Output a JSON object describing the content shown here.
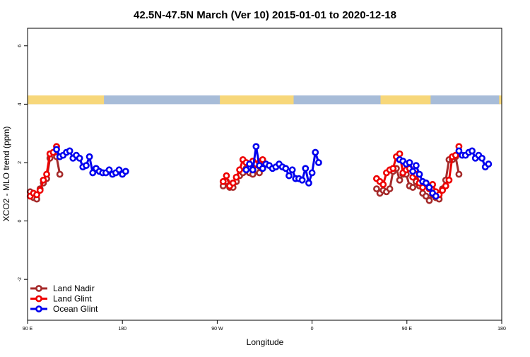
{
  "chart_data": {
    "type": "line",
    "title": "42.5N-47.5N March (Ver 10)   2015-01-01 to 2020-12-18",
    "xlabel": "Longitude",
    "ylabel": "XCO2 - MLO trend (ppm)",
    "xlim": [
      90,
      450
    ],
    "ylim": [
      -3.4,
      6.6
    ],
    "x_ticks": [
      {
        "value": 90,
        "label": "90 E"
      },
      {
        "value": 180,
        "label": "180"
      },
      {
        "value": 270,
        "label": "90 W"
      },
      {
        "value": 360,
        "label": "0"
      },
      {
        "value": 450,
        "label": "90 E"
      },
      {
        "value": 540,
        "label": "180"
      }
    ],
    "y_ticks": [
      {
        "value": -2,
        "label": "-2"
      },
      {
        "value": 0,
        "label": "0"
      },
      {
        "value": 2,
        "label": "2"
      },
      {
        "value": 4,
        "label": "4"
      },
      {
        "value": 6,
        "label": "6"
      }
    ],
    "display_xlim": [
      90,
      540
    ],
    "grid": false,
    "legend_position": "bottom-left",
    "land_sea_strip": {
      "y_range": [
        4.0,
        4.3
      ],
      "land_color": "#f7d77a",
      "ocean_color": "#a7bcd8",
      "land_x": [
        [
          90,
          148
        ],
        [
          236,
          292
        ],
        [
          358,
          396
        ],
        [
          448,
          508
        ]
      ]
    },
    "series": [
      {
        "name": "Land Nadir",
        "color": "#a52a2a",
        "points": [
          [
            92,
            1.0
          ],
          [
            94.5,
            0.8
          ],
          [
            97,
            0.75
          ],
          [
            99.5,
            1.1
          ],
          [
            102,
            1.3
          ],
          [
            104.5,
            1.45
          ],
          [
            107,
            2.15
          ],
          [
            112,
            2.2
          ],
          [
            114.5,
            1.6
          ],
          [
            238.5,
            1.2
          ],
          [
            241,
            1.35
          ],
          [
            243.5,
            1.15
          ],
          [
            246,
            1.15
          ],
          [
            248.5,
            1.35
          ],
          [
            251,
            1.55
          ],
          [
            253.5,
            1.65
          ],
          [
            256,
            1.8
          ],
          [
            258.5,
            1.65
          ],
          [
            261,
            1.6
          ],
          [
            263.5,
            1.75
          ],
          [
            266,
            1.65
          ],
          [
            268.5,
            1.8
          ],
          [
            355,
            1.1
          ],
          [
            357.5,
            0.95
          ],
          [
            360,
            1.05
          ],
          [
            362.5,
            1.0
          ],
          [
            365,
            1.1
          ],
          [
            367.5,
            1.7
          ],
          [
            370,
            1.8
          ],
          [
            372.5,
            1.4
          ],
          [
            375,
            1.6
          ],
          [
            377.5,
            1.6
          ],
          [
            380,
            1.2
          ],
          [
            382.5,
            1.15
          ],
          [
            385,
            1.35
          ],
          [
            387.5,
            1.2
          ],
          [
            390,
            0.95
          ],
          [
            392.5,
            0.85
          ],
          [
            395,
            0.7
          ],
          [
            397.5,
            0.9
          ],
          [
            400,
            0.8
          ],
          [
            402.5,
            0.75
          ],
          [
            405,
            1.1
          ],
          [
            407.5,
            1.4
          ],
          [
            410,
            2.1
          ],
          [
            412.5,
            2.1
          ],
          [
            415,
            2.2
          ],
          [
            417.5,
            1.6
          ]
        ]
      },
      {
        "name": "Land Glint",
        "color": "#ee0000",
        "points": [
          [
            92,
            0.85
          ],
          [
            94.5,
            0.95
          ],
          [
            97,
            0.9
          ],
          [
            99.5,
            1.05
          ],
          [
            102,
            1.4
          ],
          [
            104.5,
            1.6
          ],
          [
            107,
            2.3
          ],
          [
            109.5,
            2.35
          ],
          [
            112,
            2.55
          ],
          [
            238.5,
            1.35
          ],
          [
            241,
            1.55
          ],
          [
            243.5,
            1.2
          ],
          [
            246,
            1.3
          ],
          [
            248.5,
            1.5
          ],
          [
            251,
            1.75
          ],
          [
            253.5,
            2.1
          ],
          [
            256,
            2.0
          ],
          [
            258.5,
            1.85
          ],
          [
            261,
            2.05
          ],
          [
            263.5,
            1.95
          ],
          [
            266,
            2.0
          ],
          [
            268.5,
            2.1
          ],
          [
            355,
            1.45
          ],
          [
            357.5,
            1.35
          ],
          [
            360,
            1.25
          ],
          [
            362.5,
            1.65
          ],
          [
            365,
            1.75
          ],
          [
            367.5,
            1.8
          ],
          [
            370,
            2.2
          ],
          [
            372.5,
            2.3
          ],
          [
            375,
            1.65
          ],
          [
            377.5,
            1.75
          ],
          [
            380,
            1.8
          ],
          [
            382.5,
            1.5
          ],
          [
            385,
            1.6
          ],
          [
            387.5,
            1.3
          ],
          [
            390,
            1.15
          ],
          [
            392.5,
            1.3
          ],
          [
            395,
            1.1
          ],
          [
            397.5,
            1.25
          ],
          [
            400,
            1.0
          ],
          [
            402.5,
            0.9
          ],
          [
            405,
            1.05
          ],
          [
            407.5,
            1.2
          ],
          [
            410,
            1.4
          ],
          [
            412.5,
            2.2
          ],
          [
            415,
            2.25
          ],
          [
            417.5,
            2.55
          ]
        ]
      },
      {
        "name": "Ocean Glint",
        "color": "#0000ee",
        "points": [
          [
            112,
            2.45
          ],
          [
            114.5,
            2.2
          ],
          [
            117,
            2.25
          ],
          [
            119.5,
            2.35
          ],
          [
            122,
            2.4
          ],
          [
            124.5,
            2.15
          ],
          [
            127,
            2.25
          ],
          [
            129.5,
            2.15
          ],
          [
            132,
            1.85
          ],
          [
            134.5,
            1.9
          ],
          [
            137,
            2.2
          ],
          [
            139.5,
            1.65
          ],
          [
            142,
            1.8
          ],
          [
            144.5,
            1.7
          ],
          [
            147,
            1.65
          ],
          [
            149.5,
            1.65
          ],
          [
            152,
            1.75
          ],
          [
            154.5,
            1.6
          ],
          [
            157,
            1.65
          ],
          [
            159.5,
            1.75
          ],
          [
            162,
            1.6
          ],
          [
            164.5,
            1.7
          ],
          [
            256,
            1.75
          ],
          [
            258.5,
            1.95
          ],
          [
            261,
            1.75
          ],
          [
            263.5,
            2.55
          ],
          [
            266,
            1.9
          ],
          [
            268.5,
            1.8
          ],
          [
            271,
            1.95
          ],
          [
            273.5,
            1.9
          ],
          [
            276,
            1.8
          ],
          [
            278.5,
            1.85
          ],
          [
            281,
            1.95
          ],
          [
            283.5,
            1.85
          ],
          [
            286,
            1.8
          ],
          [
            288.5,
            1.55
          ],
          [
            291,
            1.75
          ],
          [
            293.5,
            1.45
          ],
          [
            296,
            1.45
          ],
          [
            298.5,
            1.4
          ],
          [
            301,
            1.8
          ],
          [
            303.5,
            1.3
          ],
          [
            306,
            1.65
          ],
          [
            308.5,
            2.35
          ],
          [
            311,
            2.0
          ],
          [
            372.5,
            2.1
          ],
          [
            375,
            2.05
          ],
          [
            377.5,
            1.95
          ],
          [
            380,
            2.0
          ],
          [
            382.5,
            1.7
          ],
          [
            385,
            1.9
          ],
          [
            387.5,
            1.6
          ],
          [
            390,
            1.35
          ],
          [
            392.5,
            1.3
          ],
          [
            395,
            1.15
          ],
          [
            397.5,
            0.95
          ],
          [
            400,
            0.85
          ],
          [
            417.5,
            2.4
          ],
          [
            420,
            2.25
          ],
          [
            422.5,
            2.25
          ],
          [
            425,
            2.35
          ],
          [
            427.5,
            2.4
          ],
          [
            430,
            2.15
          ],
          [
            432.5,
            2.25
          ],
          [
            435,
            2.15
          ],
          [
            437.5,
            1.85
          ],
          [
            440,
            1.95
          ]
        ]
      }
    ]
  }
}
